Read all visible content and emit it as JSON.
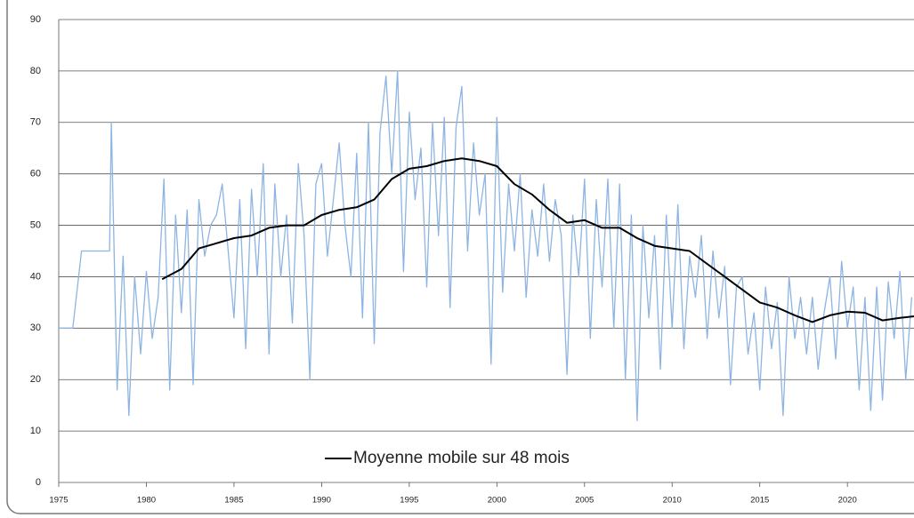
{
  "chart_data": {
    "type": "line",
    "xlim": [
      1975,
      2023.8
    ],
    "xticks": [
      1975,
      1980,
      1985,
      1990,
      1995,
      2000,
      2005,
      2010,
      2015,
      2020
    ],
    "ylim": [
      0,
      90
    ],
    "yticks": [
      0,
      10,
      20,
      30,
      40,
      50,
      60,
      70,
      80,
      90
    ],
    "grid": true,
    "legend": "bottom",
    "series": [
      {
        "color": "#8db4e2",
        "x": [
          1975,
          1975.8,
          1976.3,
          1977.9,
          1978,
          1978.33,
          1978.67,
          1979,
          1979.33,
          1979.67,
          1980,
          1980.33,
          1980.67,
          1981,
          1981.33,
          1981.67,
          1982,
          1982.33,
          1982.67,
          1983,
          1983.33,
          1983.67,
          1984,
          1984.33,
          1984.67,
          1985,
          1985.33,
          1985.67,
          1986,
          1986.33,
          1986.67,
          1987,
          1987.33,
          1987.67,
          1988,
          1988.33,
          1988.67,
          1989,
          1989.33,
          1989.67,
          1990,
          1990.33,
          1990.67,
          1991,
          1991.33,
          1991.67,
          1992,
          1992.33,
          1992.67,
          1993,
          1993.33,
          1993.67,
          1994,
          1994.33,
          1994.67,
          1995,
          1995.33,
          1995.67,
          1996,
          1996.33,
          1996.67,
          1997,
          1997.33,
          1997.67,
          1998,
          1998.33,
          1998.67,
          1999,
          1999.33,
          1999.67,
          2000,
          2000.33,
          2000.67,
          2001,
          2001.33,
          2001.67,
          2002,
          2002.33,
          2002.67,
          2003,
          2003.33,
          2003.67,
          2004,
          2004.33,
          2004.67,
          2005,
          2005.33,
          2005.67,
          2006,
          2006.33,
          2006.67,
          2007,
          2007.33,
          2007.67,
          2008,
          2008.33,
          2008.67,
          2009,
          2009.33,
          2009.67,
          2010,
          2010.33,
          2010.67,
          2011,
          2011.33,
          2011.67,
          2012,
          2012.33,
          2012.67,
          2013,
          2013.33,
          2013.67,
          2014,
          2014.33,
          2014.67,
          2015,
          2015.33,
          2015.67,
          2016,
          2016.33,
          2016.67,
          2017,
          2017.33,
          2017.67,
          2018,
          2018.33,
          2018.67,
          2019,
          2019.33,
          2019.67,
          2020,
          2020.33,
          2020.67,
          2021,
          2021.33,
          2021.67,
          2022,
          2022.33,
          2022.67,
          2023,
          2023.33,
          2023.67
        ],
        "values": [
          30,
          30,
          45,
          45,
          70,
          18,
          44,
          13,
          40,
          25,
          41,
          28,
          36,
          59,
          18,
          52,
          33,
          53,
          19,
          55,
          44,
          50,
          52,
          58,
          45,
          32,
          55,
          26,
          57,
          40,
          62,
          25,
          58,
          40,
          52,
          31,
          62,
          48,
          20,
          58,
          62,
          44,
          55,
          66,
          50,
          40,
          64,
          32,
          70,
          27,
          68,
          79,
          60,
          80,
          41,
          72,
          55,
          65,
          38,
          70,
          48,
          71,
          34,
          69,
          77,
          45,
          66,
          52,
          60,
          23,
          71,
          37,
          58,
          45,
          60,
          36,
          53,
          44,
          58,
          43,
          55,
          48,
          21,
          52,
          40,
          59,
          28,
          55,
          38,
          59,
          30,
          58,
          20,
          52,
          12,
          50,
          32,
          48,
          22,
          52,
          30,
          54,
          26,
          44,
          36,
          48,
          28,
          45,
          32,
          42,
          19,
          38,
          40,
          25,
          33,
          18,
          38,
          26,
          35,
          13,
          40,
          28,
          36,
          25,
          36,
          22,
          33,
          40,
          24,
          43,
          30,
          38,
          18,
          36,
          14,
          38,
          16,
          39,
          28,
          41,
          20,
          36
        ]
      },
      {
        "name": "Moyenne mobile sur 48 mois",
        "color": "#000000",
        "x": [
          1980.9,
          1982,
          1983,
          1984,
          1985,
          1986,
          1987,
          1988,
          1989,
          1990,
          1991,
          1992,
          1993,
          1994,
          1995,
          1996,
          1997,
          1998,
          1999,
          2000,
          2001,
          2002,
          2003,
          2004,
          2005,
          2006,
          2007,
          2008,
          2009,
          2010,
          2011,
          2012,
          2013,
          2014,
          2015,
          2016,
          2017,
          2018,
          2019,
          2020,
          2021,
          2022,
          2023,
          2023.8
        ],
        "values": [
          39.5,
          41.5,
          45.5,
          46.5,
          47.5,
          48,
          49.5,
          50,
          50,
          52,
          53,
          53.5,
          55,
          59,
          61,
          61.5,
          62.5,
          63,
          62.5,
          61.5,
          58,
          56,
          53,
          50.5,
          51,
          49.5,
          49.5,
          47.5,
          46,
          45.5,
          45,
          42.5,
          40,
          37.5,
          35,
          34,
          32.5,
          31.2,
          32.5,
          33.2,
          33,
          31.5,
          32,
          32.3
        ]
      }
    ]
  }
}
